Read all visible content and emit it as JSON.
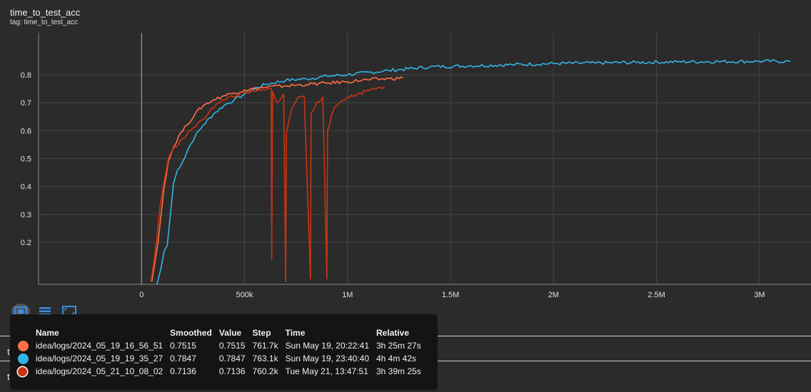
{
  "card": {
    "title": "time_to_test_acc",
    "tag": "tag: time_to_test_acc"
  },
  "sections": [
    {
      "label": "time_to_test_loss"
    },
    {
      "label": "time_to_train_acc"
    }
  ],
  "toolbar": {
    "icons": [
      "fit-domain-icon",
      "data-table-icon",
      "expand-icon"
    ]
  },
  "tooltip": {
    "headers": [
      "Name",
      "Smoothed",
      "Value",
      "Step",
      "Time",
      "Relative"
    ],
    "rows": [
      {
        "color": "#ff7043",
        "name": "idea/logs/2024_05_19_16_56_51",
        "smoothed": "0.7515",
        "value": "0.7515",
        "step": "761.7k",
        "time": "Sun May 19, 20:22:41",
        "relative": "3h 25m 27s"
      },
      {
        "color": "#33b5e5",
        "name": "idea/logs/2024_05_19_19_35_27",
        "smoothed": "0.7847",
        "value": "0.7847",
        "step": "763.1k",
        "time": "Sun May 19, 23:40:40",
        "relative": "4h 4m 42s"
      },
      {
        "color": "#cc3311",
        "name": "idea/logs/2024_05_21_10_08_02",
        "smoothed": "0.7136",
        "value": "0.7136",
        "step": "760.2k",
        "time": "Tue May 21, 13:47:51",
        "relative": "3h 39m 25s"
      }
    ]
  },
  "chart_data": {
    "type": "line",
    "title": "time_to_test_acc",
    "xlabel": "",
    "ylabel": "",
    "xlim": [
      -500000,
      3250000
    ],
    "ylim": [
      0.05,
      0.95
    ],
    "x_ticks": [
      0,
      500000,
      1000000,
      1500000,
      2000000,
      2500000,
      3000000
    ],
    "x_tick_labels": [
      "0",
      "500k",
      "1M",
      "1.5M",
      "2M",
      "2.5M",
      "3M"
    ],
    "y_ticks": [
      0.2,
      0.3,
      0.4,
      0.5,
      0.6,
      0.7,
      0.8
    ],
    "y_tick_labels": [
      "0.2",
      "0.3",
      "0.4",
      "0.5",
      "0.6",
      "0.7",
      "0.8"
    ],
    "grid": true,
    "series": [
      {
        "name": "idea/logs/2024_05_19_19_35_27",
        "color": "#33b5e5",
        "points": [
          [
            75000,
            0.05
          ],
          [
            95000,
            0.11
          ],
          [
            110000,
            0.17
          ],
          [
            125000,
            0.19
          ],
          [
            140000,
            0.3
          ],
          [
            155000,
            0.41
          ],
          [
            175000,
            0.46
          ],
          [
            200000,
            0.49
          ],
          [
            230000,
            0.54
          ],
          [
            260000,
            0.58
          ],
          [
            300000,
            0.62
          ],
          [
            350000,
            0.66
          ],
          [
            400000,
            0.69
          ],
          [
            450000,
            0.71
          ],
          [
            500000,
            0.73
          ],
          [
            550000,
            0.75
          ],
          [
            600000,
            0.765
          ],
          [
            700000,
            0.78
          ],
          [
            800000,
            0.785
          ],
          [
            900000,
            0.795
          ],
          [
            1000000,
            0.8
          ],
          [
            1200000,
            0.815
          ],
          [
            1400000,
            0.828
          ],
          [
            1600000,
            0.832
          ],
          [
            1800000,
            0.836
          ],
          [
            2000000,
            0.84
          ],
          [
            2200000,
            0.842
          ],
          [
            2400000,
            0.844
          ],
          [
            2600000,
            0.846
          ],
          [
            2800000,
            0.847
          ],
          [
            3000000,
            0.848
          ],
          [
            3150000,
            0.848
          ]
        ]
      },
      {
        "name": "idea/logs/2024_05_19_16_56_51",
        "color": "#ff7043",
        "points": [
          [
            50000,
            0.06
          ],
          [
            65000,
            0.13
          ],
          [
            80000,
            0.2
          ],
          [
            95000,
            0.3
          ],
          [
            110000,
            0.4
          ],
          [
            130000,
            0.49
          ],
          [
            150000,
            0.53
          ],
          [
            180000,
            0.58
          ],
          [
            220000,
            0.62
          ],
          [
            260000,
            0.66
          ],
          [
            300000,
            0.69
          ],
          [
            350000,
            0.71
          ],
          [
            400000,
            0.725
          ],
          [
            450000,
            0.735
          ],
          [
            500000,
            0.745
          ],
          [
            600000,
            0.755
          ],
          [
            700000,
            0.76
          ],
          [
            800000,
            0.765
          ],
          [
            900000,
            0.77
          ],
          [
            1000000,
            0.775
          ],
          [
            1100000,
            0.782
          ],
          [
            1200000,
            0.786
          ],
          [
            1270000,
            0.788
          ]
        ]
      },
      {
        "name": "idea/logs/2024_05_21_10_08_02",
        "color": "#cc3311",
        "points": [
          [
            45000,
            0.06
          ],
          [
            60000,
            0.13
          ],
          [
            75000,
            0.22
          ],
          [
            90000,
            0.33
          ],
          [
            110000,
            0.42
          ],
          [
            130000,
            0.5
          ],
          [
            160000,
            0.54
          ],
          [
            200000,
            0.57
          ],
          [
            250000,
            0.61
          ],
          [
            300000,
            0.64
          ],
          [
            340000,
            0.68
          ],
          [
            380000,
            0.7
          ],
          [
            420000,
            0.72
          ],
          [
            460000,
            0.725
          ],
          [
            500000,
            0.735
          ],
          [
            550000,
            0.74
          ],
          [
            600000,
            0.745
          ],
          [
            630000,
            0.75
          ],
          [
            632000,
            0.14
          ],
          [
            636000,
            0.74
          ],
          [
            660000,
            0.7
          ],
          [
            690000,
            0.73
          ],
          [
            700000,
            0.06
          ],
          [
            703000,
            0.59
          ],
          [
            730000,
            0.68
          ],
          [
            760000,
            0.72
          ],
          [
            790000,
            0.72
          ],
          [
            820000,
            0.07
          ],
          [
            823000,
            0.66
          ],
          [
            850000,
            0.7
          ],
          [
            880000,
            0.72
          ],
          [
            900000,
            0.07
          ],
          [
            903000,
            0.6
          ],
          [
            930000,
            0.67
          ],
          [
            960000,
            0.7
          ],
          [
            1000000,
            0.72
          ],
          [
            1050000,
            0.73
          ],
          [
            1100000,
            0.745
          ],
          [
            1150000,
            0.755
          ],
          [
            1180000,
            0.758
          ]
        ]
      }
    ]
  }
}
